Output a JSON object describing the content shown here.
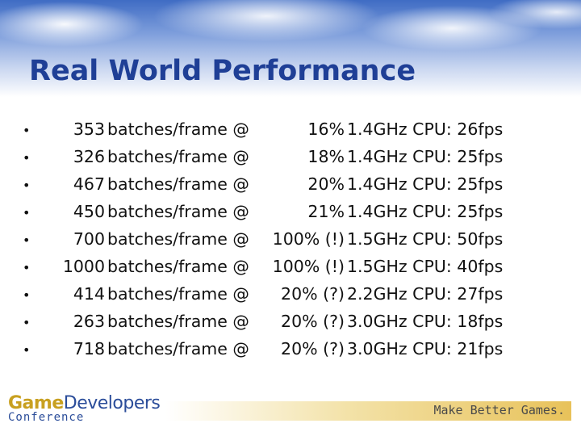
{
  "title": "Real World Performance",
  "unit_label": "batches/frame @",
  "bullet_glyph": "•",
  "rows": [
    {
      "count": "353",
      "percent": "16%",
      "cpu": "1.4GHz CPU: 26fps"
    },
    {
      "count": "326",
      "percent": "18%",
      "cpu": "1.4GHz CPU: 25fps"
    },
    {
      "count": "467",
      "percent": "20%",
      "cpu": "1.4GHz CPU: 25fps"
    },
    {
      "count": "450",
      "percent": "21%",
      "cpu": "1.4GHz CPU: 25fps"
    },
    {
      "count": "700",
      "percent": "100% (!)",
      "cpu": "1.5GHz CPU: 50fps"
    },
    {
      "count": "1000",
      "percent": "100% (!)",
      "cpu": "1.5GHz CPU: 40fps"
    },
    {
      "count": "414",
      "percent": "20% (?)",
      "cpu": "2.2GHz CPU: 27fps"
    },
    {
      "count": "263",
      "percent": "20% (?)",
      "cpu": "3.0GHz CPU: 18fps"
    },
    {
      "count": "718",
      "percent": "20% (?)",
      "cpu": "3.0GHz CPU: 21fps"
    }
  ],
  "footer": {
    "logo_game": "Game",
    "logo_developers": "Developers",
    "logo_conference": "Conference",
    "tagline": "Make Better Games."
  },
  "colors": {
    "title": "#1f3f96",
    "logo_game": "#c8a020",
    "logo_developers": "#2b4d9a"
  }
}
